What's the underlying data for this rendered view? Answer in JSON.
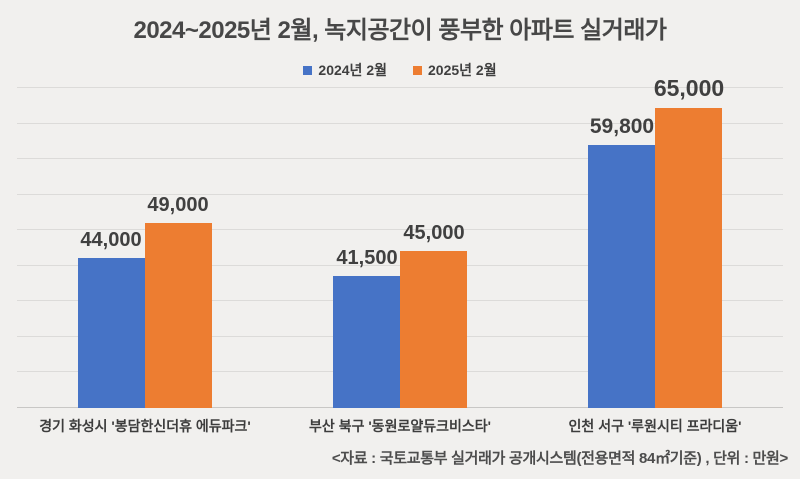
{
  "title": "2024~2025년 2월, 녹지공간이 풍부한 아파트 실거래가",
  "chart_data": {
    "type": "bar",
    "title": "2024~2025년 2월, 녹지공간이 풍부한 아파트 실거래가",
    "categories": [
      "경기 화성시 '봉담한신더휴 에듀파크'",
      "부산 북구 '동원로얄듀크비스타'",
      "인천 서구 '루원시티 프라디움'"
    ],
    "series": [
      {
        "name": "2024년 2월",
        "color": "#4673C6",
        "values": [
          44000,
          41500,
          59800
        ]
      },
      {
        "name": "2025년 2월",
        "color": "#ED7D31",
        "values": [
          49000,
          45000,
          65000
        ]
      }
    ],
    "value_labels": [
      [
        "44,000",
        "41,500",
        "59,800"
      ],
      [
        "49,000",
        "45,000",
        "65,000"
      ]
    ],
    "ylim": [
      23000,
      68000
    ],
    "gridline_count": 10,
    "grid": true,
    "legend_position": "top",
    "xlabel": "",
    "ylabel": "",
    "unit": "만원"
  },
  "footer": {
    "source": "<자료 : 국토교통부 실거래가 공개시스템(전용면적 84㎡기준) , 단위 : 만원>"
  },
  "colors": {
    "background": "#F1F0EE",
    "gridline": "#DCDBD9",
    "axis_line": "#C8C7C5",
    "series_2024": "#4673C6",
    "series_2025": "#ED7D31",
    "text": "#3C3C3C"
  }
}
